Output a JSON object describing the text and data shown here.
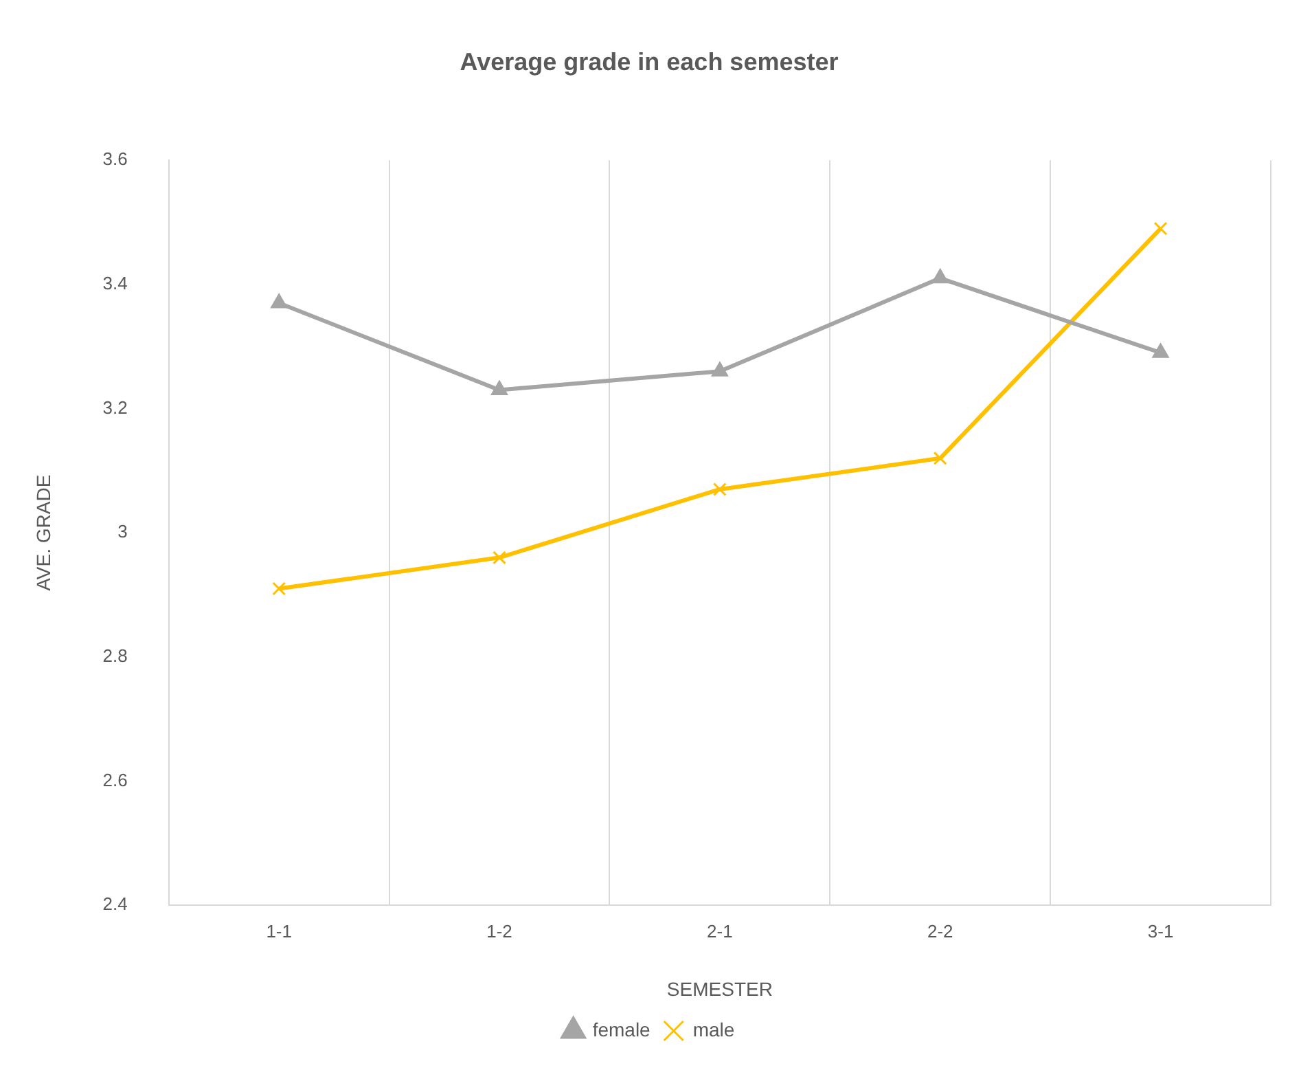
{
  "chart_data": {
    "type": "line",
    "title": "Average grade in each semester",
    "xlabel": "SEMESTER",
    "ylabel": "AVE. GRADE",
    "categories": [
      "1-1",
      "1-2",
      "2-1",
      "2-2",
      "3-1"
    ],
    "series": [
      {
        "name": "female",
        "color": "#a5a5a5",
        "marker": "triangle",
        "values": [
          3.37,
          3.23,
          3.26,
          3.41,
          3.29
        ]
      },
      {
        "name": "male",
        "color": "#ffc000",
        "marker": "cross",
        "values": [
          2.91,
          2.96,
          3.07,
          3.12,
          3.49
        ]
      }
    ],
    "ylim": [
      2.4,
      3.6
    ],
    "yticks": [
      2.4,
      2.6,
      2.8,
      3,
      3.2,
      3.4,
      3.6
    ],
    "grid": "x",
    "legend": "bottom",
    "line_style": "solid"
  }
}
